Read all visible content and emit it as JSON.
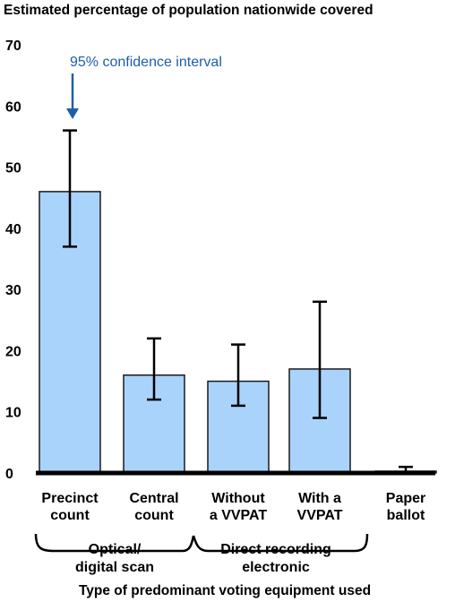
{
  "chart_data": {
    "type": "bar",
    "title": "Estimated percentage of population nationwide covered",
    "xlabel": "Type of predominant voting equipment used",
    "ylabel": "",
    "ylim": [
      0,
      70
    ],
    "yticks": [
      0,
      10,
      20,
      30,
      40,
      50,
      60,
      70
    ],
    "grid": false,
    "categories": [
      [
        "Precinct",
        "count"
      ],
      [
        "Central",
        "count"
      ],
      [
        "Without",
        "a VVPAT"
      ],
      [
        "With a",
        "VVPAT"
      ],
      [
        "Paper",
        "ballot"
      ]
    ],
    "values": [
      46,
      16,
      15,
      17,
      0.3
    ],
    "ci_low": [
      37,
      12,
      11,
      9,
      0
    ],
    "ci_high": [
      56,
      22,
      21,
      28,
      1
    ],
    "groups": [
      {
        "label": [
          "Optical/",
          "digital scan"
        ],
        "categories": [
          0,
          1
        ]
      },
      {
        "label": [
          "Direct recording",
          "electronic"
        ],
        "categories": [
          2,
          3
        ]
      }
    ],
    "annotation": "95% confidence interval",
    "colors": {
      "bar": "#a9d3fb",
      "bar_edge": "#1a1a1a",
      "annotation": "#1f5ea8",
      "text": "#000000"
    }
  }
}
